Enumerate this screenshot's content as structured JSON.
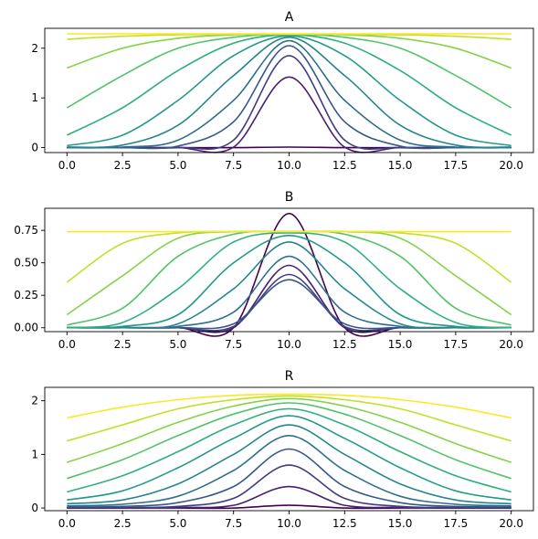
{
  "chart_data": [
    {
      "type": "line",
      "title": "A",
      "xlabel": "",
      "ylabel": "",
      "xlim": [
        -1,
        21
      ],
      "ylim": [
        -0.1,
        2.4
      ],
      "x_ticks": [
        0,
        2.5,
        5,
        7.5,
        10,
        12.5,
        15,
        17.5,
        20
      ],
      "x_tick_labels": [
        "0.0",
        "2.5",
        "5.0",
        "7.5",
        "10.0",
        "12.5",
        "15.0",
        "17.5",
        "20.0"
      ],
      "y_ticks": [
        0,
        1,
        2
      ],
      "y_tick_labels": [
        "0",
        "1",
        "2"
      ],
      "colormap": "viridis",
      "series_count": 30,
      "x": [
        0,
        2.5,
        5,
        7.5,
        10,
        12.5,
        15,
        17.5,
        20
      ],
      "series": [
        {
          "values": [
            0.0,
            0.0,
            0.0,
            0.0,
            0.01,
            0.0,
            0.0,
            0.0,
            0.0
          ]
        },
        {
          "values": [
            0.0,
            0.0,
            0.0,
            0.01,
            1.42,
            0.01,
            0.0,
            0.0,
            0.0
          ]
        },
        {
          "values": [
            0.0,
            0.0,
            0.0,
            0.15,
            1.85,
            0.15,
            0.0,
            0.0,
            0.0
          ]
        },
        {
          "values": [
            0.0,
            0.0,
            0.03,
            0.52,
            2.05,
            0.52,
            0.03,
            0.0,
            0.0
          ]
        },
        {
          "values": [
            0.0,
            0.01,
            0.15,
            0.95,
            2.15,
            0.95,
            0.15,
            0.01,
            0.0
          ]
        },
        {
          "values": [
            0.01,
            0.05,
            0.45,
            1.45,
            2.22,
            1.45,
            0.45,
            0.05,
            0.01
          ]
        },
        {
          "values": [
            0.04,
            0.25,
            0.95,
            1.85,
            2.25,
            1.85,
            0.95,
            0.25,
            0.04
          ]
        },
        {
          "values": [
            0.25,
            0.8,
            1.55,
            2.1,
            2.27,
            2.1,
            1.55,
            0.8,
            0.25
          ]
        },
        {
          "values": [
            0.8,
            1.45,
            2.0,
            2.22,
            2.28,
            2.22,
            2.0,
            1.45,
            0.8
          ]
        },
        {
          "values": [
            1.6,
            2.0,
            2.2,
            2.27,
            2.28,
            2.27,
            2.2,
            2.0,
            1.6
          ]
        },
        {
          "values": [
            2.18,
            2.24,
            2.27,
            2.28,
            2.28,
            2.28,
            2.27,
            2.24,
            2.18
          ]
        },
        {
          "values": [
            2.29,
            2.29,
            2.29,
            2.29,
            2.29,
            2.29,
            2.29,
            2.29,
            2.29
          ]
        }
      ]
    },
    {
      "type": "line",
      "title": "B",
      "xlabel": "",
      "ylabel": "",
      "xlim": [
        -1,
        21
      ],
      "ylim": [
        -0.03,
        0.92
      ],
      "x_ticks": [
        0,
        2.5,
        5,
        7.5,
        10,
        12.5,
        15,
        17.5,
        20
      ],
      "x_tick_labels": [
        "0.0",
        "2.5",
        "5.0",
        "7.5",
        "10.0",
        "12.5",
        "15.0",
        "17.5",
        "20.0"
      ],
      "y_ticks": [
        0,
        0.25,
        0.5,
        0.75
      ],
      "y_tick_labels": [
        "0.00",
        "0.25",
        "0.50",
        "0.75"
      ],
      "colormap": "viridis",
      "series_count": 30,
      "x": [
        0,
        2.5,
        5,
        7.5,
        10,
        12.5,
        15,
        17.5,
        20
      ],
      "series": [
        {
          "values": [
            0.0,
            0.0,
            0.0,
            0.0,
            0.88,
            0.0,
            0.0,
            0.0,
            0.0
          ]
        },
        {
          "values": [
            0.0,
            0.0,
            0.0,
            0.0,
            0.48,
            0.0,
            0.0,
            0.0,
            0.0
          ]
        },
        {
          "values": [
            0.0,
            0.0,
            0.0,
            0.01,
            0.41,
            0.01,
            0.0,
            0.0,
            0.0
          ]
        },
        {
          "values": [
            0.0,
            0.0,
            0.0,
            0.03,
            0.37,
            0.03,
            0.0,
            0.0,
            0.0
          ]
        },
        {
          "values": [
            0.0,
            0.0,
            0.01,
            0.12,
            0.55,
            0.12,
            0.01,
            0.0,
            0.0
          ]
        },
        {
          "values": [
            0.0,
            0.0,
            0.03,
            0.3,
            0.66,
            0.3,
            0.03,
            0.0,
            0.0
          ]
        },
        {
          "values": [
            0.0,
            0.01,
            0.1,
            0.5,
            0.71,
            0.5,
            0.1,
            0.01,
            0.0
          ]
        },
        {
          "values": [
            0.0,
            0.04,
            0.3,
            0.66,
            0.73,
            0.66,
            0.3,
            0.04,
            0.0
          ]
        },
        {
          "values": [
            0.02,
            0.15,
            0.55,
            0.72,
            0.74,
            0.72,
            0.55,
            0.15,
            0.02
          ]
        },
        {
          "values": [
            0.1,
            0.4,
            0.69,
            0.74,
            0.74,
            0.74,
            0.69,
            0.4,
            0.1
          ]
        },
        {
          "values": [
            0.35,
            0.65,
            0.73,
            0.74,
            0.74,
            0.74,
            0.73,
            0.65,
            0.35
          ]
        },
        {
          "values": [
            0.74,
            0.74,
            0.74,
            0.74,
            0.74,
            0.74,
            0.74,
            0.74,
            0.74
          ]
        }
      ]
    },
    {
      "type": "line",
      "title": "R",
      "xlabel": "",
      "ylabel": "",
      "xlim": [
        -1,
        21
      ],
      "ylim": [
        -0.05,
        2.25
      ],
      "x_ticks": [
        0,
        2.5,
        5,
        7.5,
        10,
        12.5,
        15,
        17.5,
        20
      ],
      "x_tick_labels": [
        "0.0",
        "2.5",
        "5.0",
        "7.5",
        "10.0",
        "12.5",
        "15.0",
        "17.5",
        "20.0"
      ],
      "y_ticks": [
        0,
        1,
        2
      ],
      "y_tick_labels": [
        "0",
        "1",
        "2"
      ],
      "colormap": "viridis",
      "series_count": 30,
      "x": [
        0,
        2.5,
        5,
        7.5,
        10,
        12.5,
        15,
        17.5,
        20
      ],
      "series": [
        {
          "values": [
            0.0,
            0.0,
            0.0,
            0.0,
            0.05,
            0.0,
            0.0,
            0.0,
            0.0
          ]
        },
        {
          "values": [
            0.0,
            0.0,
            0.01,
            0.05,
            0.4,
            0.05,
            0.01,
            0.0,
            0.0
          ]
        },
        {
          "values": [
            0.01,
            0.01,
            0.03,
            0.18,
            0.8,
            0.18,
            0.03,
            0.01,
            0.01
          ]
        },
        {
          "values": [
            0.02,
            0.03,
            0.1,
            0.4,
            1.1,
            0.4,
            0.1,
            0.03,
            0.02
          ]
        },
        {
          "values": [
            0.04,
            0.07,
            0.22,
            0.7,
            1.35,
            0.7,
            0.22,
            0.07,
            0.04
          ]
        },
        {
          "values": [
            0.08,
            0.15,
            0.45,
            1.0,
            1.55,
            1.0,
            0.45,
            0.15,
            0.08
          ]
        },
        {
          "values": [
            0.15,
            0.32,
            0.75,
            1.3,
            1.72,
            1.3,
            0.75,
            0.32,
            0.15
          ]
        },
        {
          "values": [
            0.3,
            0.6,
            1.05,
            1.55,
            1.85,
            1.55,
            1.05,
            0.6,
            0.3
          ]
        },
        {
          "values": [
            0.55,
            0.9,
            1.35,
            1.75,
            1.96,
            1.75,
            1.35,
            0.9,
            0.55
          ]
        },
        {
          "values": [
            0.85,
            1.2,
            1.6,
            1.9,
            2.04,
            1.9,
            1.6,
            1.2,
            0.85
          ]
        },
        {
          "values": [
            1.25,
            1.55,
            1.85,
            2.02,
            2.09,
            2.02,
            1.85,
            1.55,
            1.25
          ]
        },
        {
          "values": [
            1.68,
            1.88,
            2.02,
            2.1,
            2.12,
            2.1,
            2.02,
            1.88,
            1.68
          ]
        }
      ]
    }
  ]
}
